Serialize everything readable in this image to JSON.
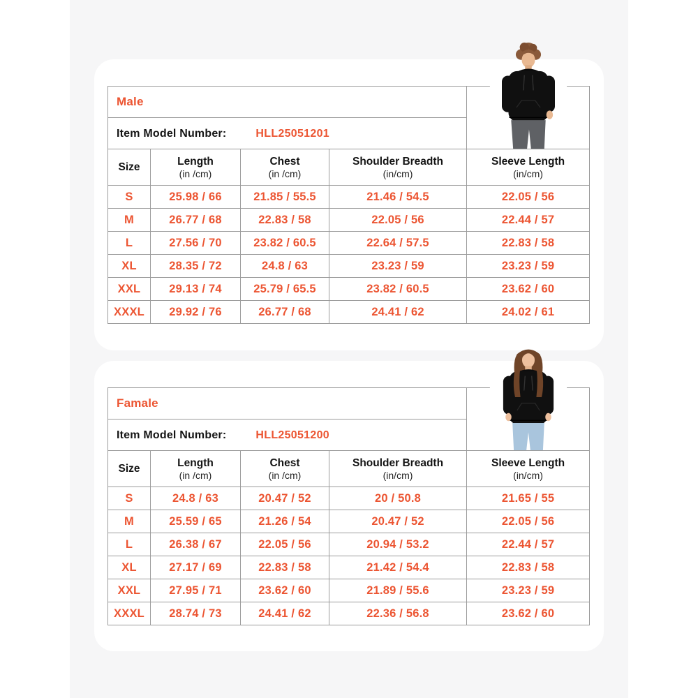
{
  "theme": {
    "accent": "#EC5532",
    "text_color": "#141414",
    "border_color": "#9B9B9B",
    "band_bg": "#F6F6F7",
    "card_bg": "#FFFFFF"
  },
  "row_keys": [
    "size",
    "length",
    "chest",
    "shoulder",
    "sleeve"
  ],
  "tables": [
    {
      "gender_label": "Male",
      "item_model_label": "Item Model Number:",
      "item_model_number": "HLL25051201",
      "model_photo": "male model wearing black hoodie",
      "columns": [
        {
          "label": "Size",
          "sub": ""
        },
        {
          "label": "Length",
          "sub": "(in /cm)"
        },
        {
          "label": "Chest",
          "sub": "(in /cm)"
        },
        {
          "label": "Shoulder Breadth",
          "sub": "(in/cm)"
        },
        {
          "label": "Sleeve Length",
          "sub": "(in/cm)"
        }
      ],
      "rows": [
        {
          "size": "S",
          "length": "25.98 / 66",
          "chest": "21.85 / 55.5",
          "shoulder": "21.46 / 54.5",
          "sleeve": "22.05 / 56"
        },
        {
          "size": "M",
          "length": "26.77 / 68",
          "chest": "22.83 / 58",
          "shoulder": "22.05 / 56",
          "sleeve": "22.44 / 57"
        },
        {
          "size": "L",
          "length": "27.56 / 70",
          "chest": "23.82 / 60.5",
          "shoulder": "22.64 / 57.5",
          "sleeve": "22.83 / 58"
        },
        {
          "size": "XL",
          "length": "28.35 / 72",
          "chest": "24.8 / 63",
          "shoulder": "23.23 / 59",
          "sleeve": "23.23 / 59"
        },
        {
          "size": "XXL",
          "length": "29.13 / 74",
          "chest": "25.79 / 65.5",
          "shoulder": "23.82 / 60.5",
          "sleeve": "23.62 / 60"
        },
        {
          "size": "XXXL",
          "length": "29.92 / 76",
          "chest": "26.77 / 68",
          "shoulder": "24.41 / 62",
          "sleeve": "24.02 / 61"
        }
      ]
    },
    {
      "gender_label": "Famale",
      "item_model_label": "Item Model Number:",
      "item_model_number": "HLL25051200",
      "model_photo": "female model wearing black hoodie",
      "columns": [
        {
          "label": "Size",
          "sub": ""
        },
        {
          "label": "Length",
          "sub": "(in /cm)"
        },
        {
          "label": "Chest",
          "sub": "(in /cm)"
        },
        {
          "label": "Shoulder Breadth",
          "sub": "(in/cm)"
        },
        {
          "label": "Sleeve Length",
          "sub": "(in/cm)"
        }
      ],
      "rows": [
        {
          "size": "S",
          "length": "24.8 / 63",
          "chest": "20.47 / 52",
          "shoulder": "20 / 50.8",
          "sleeve": "21.65 / 55"
        },
        {
          "size": "M",
          "length": "25.59 / 65",
          "chest": "21.26 / 54",
          "shoulder": "20.47 / 52",
          "sleeve": "22.05 / 56"
        },
        {
          "size": "L",
          "length": "26.38 / 67",
          "chest": "22.05 / 56",
          "shoulder": "20.94 / 53.2",
          "sleeve": "22.44 / 57"
        },
        {
          "size": "XL",
          "length": "27.17 / 69",
          "chest": "22.83 / 58",
          "shoulder": "21.42 / 54.4",
          "sleeve": "22.83 / 58"
        },
        {
          "size": "XXL",
          "length": "27.95 / 71",
          "chest": "23.62 / 60",
          "shoulder": "21.89 / 55.6",
          "sleeve": "23.23 / 59"
        },
        {
          "size": "XXXL",
          "length": "28.74 / 73",
          "chest": "24.41 / 62",
          "shoulder": "22.36 / 56.8",
          "sleeve": "23.62 / 60"
        }
      ]
    }
  ]
}
